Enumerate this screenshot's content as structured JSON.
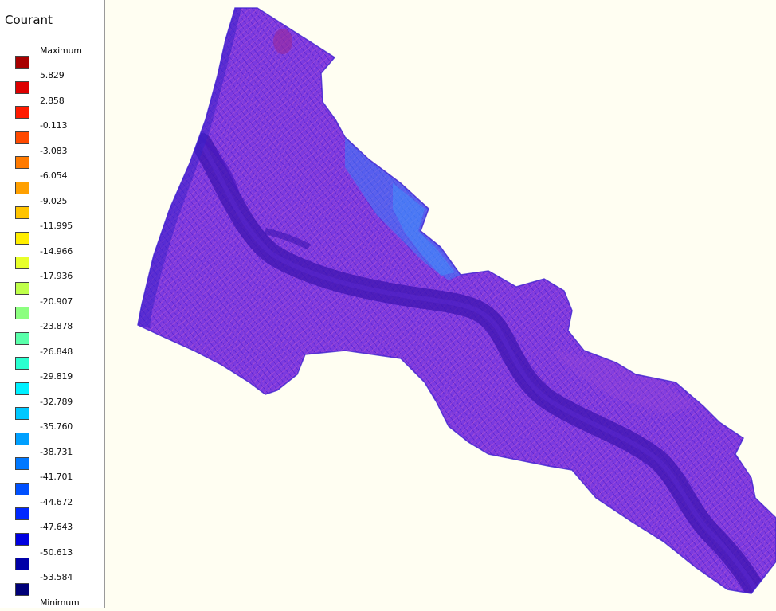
{
  "legend": {
    "title": "Courant",
    "max_label": "Maximum",
    "min_label": "Minimum",
    "values": [
      "5.829",
      "2.858",
      "-0.113",
      "-3.083",
      "-6.054",
      "-9.025",
      "-11.995",
      "-14.966",
      "-17.936",
      "-20.907",
      "-23.878",
      "-26.848",
      "-29.819",
      "-32.789",
      "-35.760",
      "-38.731",
      "-41.701",
      "-44.672",
      "-47.643",
      "-50.613",
      "-53.584"
    ],
    "colors": [
      "#a80000",
      "#dd0000",
      "#ff1a00",
      "#ff4a00",
      "#ff7a00",
      "#ffa000",
      "#ffc400",
      "#ffee00",
      "#e8ff2a",
      "#bfff4a",
      "#8cff80",
      "#5affaa",
      "#2affd0",
      "#00f0ff",
      "#00c8ff",
      "#00a0ff",
      "#0078ff",
      "#0050ff",
      "#0028ff",
      "#0000e0",
      "#0000a8",
      "#000078"
    ]
  },
  "map": {
    "background": "#fffef2",
    "mesh_color": "#6a2ad8",
    "channel_color": "#3a10a8",
    "highlight_color": "#1a7aff"
  }
}
